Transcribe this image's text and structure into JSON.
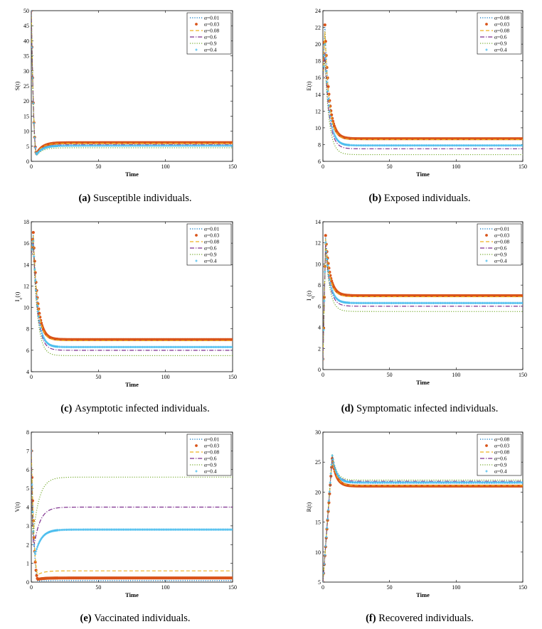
{
  "chart_data": [
    {
      "type": "line",
      "caption_letter": "(a)",
      "caption_text": "Susceptible individuals.",
      "ylabel": "S(t)",
      "xlabel": "Time",
      "xlim": [
        0,
        150
      ],
      "ylim": [
        0,
        50
      ],
      "xticks": [
        0,
        50,
        100,
        150
      ],
      "yticks": [
        0,
        5,
        10,
        15,
        20,
        25,
        30,
        35,
        40,
        45,
        50
      ],
      "legend": [
        "α=0.01",
        "α=0.03",
        "α=0.08",
        "α=0.6",
        "α=0.9",
        "α=0.4"
      ],
      "series": [
        {
          "name": "α=0.01",
          "style": "dotted",
          "color": "#0072BD",
          "start": 50,
          "peak": 50,
          "peakT": 0,
          "dip": 2.5,
          "dipT": 4,
          "final": 6.0
        },
        {
          "name": "α=0.03",
          "style": "circle",
          "color": "#D95319",
          "start": 50,
          "peak": 50,
          "peakT": 0,
          "dip": 2.5,
          "dipT": 4,
          "final": 6.2
        },
        {
          "name": "α=0.08",
          "style": "dashed",
          "color": "#EDB120",
          "start": 50,
          "peak": 50,
          "peakT": 0,
          "dip": 2.6,
          "dipT": 4,
          "final": 6.0
        },
        {
          "name": "α=0.6",
          "style": "dashdot",
          "color": "#7E2F8E",
          "start": 50,
          "peak": 50,
          "peakT": 0,
          "dip": 2.4,
          "dipT": 4,
          "final": 5.5
        },
        {
          "name": "α=0.9",
          "style": "dotted",
          "color": "#77AC30",
          "start": 50,
          "peak": 50,
          "peakT": 0,
          "dip": 2.0,
          "dipT": 4,
          "final": 4.5
        },
        {
          "name": "α=0.4",
          "style": "plus",
          "color": "#4DBEEE",
          "start": 50,
          "peak": 50,
          "peakT": 0,
          "dip": 2.3,
          "dipT": 4,
          "final": 5.2
        }
      ]
    },
    {
      "type": "line",
      "caption_letter": "(b)",
      "caption_text": "Exposed individuals.",
      "ylabel": "E(t)",
      "xlabel": "Time",
      "xlim": [
        0,
        150
      ],
      "ylim": [
        6,
        24
      ],
      "xticks": [
        0,
        50,
        100,
        150
      ],
      "yticks": [
        6,
        8,
        10,
        12,
        14,
        16,
        18,
        20,
        22,
        24
      ],
      "legend": [
        "α=0.08",
        "α=0.03",
        "α=0.08",
        "α=0.6",
        "α=0.9",
        "α=0.4"
      ],
      "series": [
        {
          "name": "α=0.08",
          "style": "dotted",
          "color": "#0072BD",
          "start": 16,
          "peak": 22,
          "peakT": 1.5,
          "final": 8.7
        },
        {
          "name": "α=0.03",
          "style": "circle",
          "color": "#D95319",
          "start": 16,
          "peak": 22.3,
          "peakT": 1.5,
          "final": 8.7
        },
        {
          "name": "α=0.08",
          "style": "dashed",
          "color": "#EDB120",
          "start": 16,
          "peak": 21.5,
          "peakT": 1.5,
          "final": 8.6
        },
        {
          "name": "α=0.6",
          "style": "dashdot",
          "color": "#7E2F8E",
          "start": 16,
          "peak": 19,
          "peakT": 1.5,
          "final": 7.5
        },
        {
          "name": "α=0.9",
          "style": "dotted",
          "color": "#77AC30",
          "start": 16,
          "peak": 18,
          "peakT": 1.5,
          "final": 6.8
        },
        {
          "name": "α=0.4",
          "style": "plus",
          "color": "#4DBEEE",
          "start": 16,
          "peak": 20,
          "peakT": 1.5,
          "final": 7.9
        }
      ]
    },
    {
      "type": "line",
      "caption_letter": "(c)",
      "caption_text": "Asymptotic infected individuals.",
      "ylabel": "I",
      "ylabel_sub": "c",
      "ylabel_suffix": "(t)",
      "xlabel": "Time",
      "xlim": [
        0,
        150
      ],
      "ylim": [
        4,
        18
      ],
      "xticks": [
        0,
        50,
        100,
        150
      ],
      "yticks": [
        4,
        6,
        8,
        10,
        12,
        14,
        16,
        18
      ],
      "legend": [
        "α=0.01",
        "α=0.03",
        "α=0.08",
        "α=0.6",
        "α=0.9",
        "α=0.4"
      ],
      "series": [
        {
          "name": "α=0.01",
          "style": "dotted",
          "color": "#0072BD",
          "start": 15,
          "peak": 16.8,
          "peakT": 1.5,
          "final": 7.0
        },
        {
          "name": "α=0.03",
          "style": "circle",
          "color": "#D95319",
          "start": 15,
          "peak": 17,
          "peakT": 1.5,
          "final": 7.0
        },
        {
          "name": "α=0.08",
          "style": "dashed",
          "color": "#EDB120",
          "start": 15,
          "peak": 16.7,
          "peakT": 1.5,
          "final": 6.9
        },
        {
          "name": "α=0.6",
          "style": "dashdot",
          "color": "#7E2F8E",
          "start": 15,
          "peak": 16,
          "peakT": 1.5,
          "final": 6.0
        },
        {
          "name": "α=0.9",
          "style": "dotted",
          "color": "#77AC30",
          "start": 15,
          "peak": 15.6,
          "peakT": 1.5,
          "final": 5.5
        },
        {
          "name": "α=0.4",
          "style": "plus",
          "color": "#4DBEEE",
          "start": 15,
          "peak": 16.2,
          "peakT": 1.5,
          "final": 6.3
        }
      ]
    },
    {
      "type": "line",
      "caption_letter": "(d)",
      "caption_text": "Symptomatic infected individuals.",
      "ylabel": "I",
      "ylabel_sub": "q",
      "ylabel_suffix": "(t)",
      "xlabel": "Time",
      "xlim": [
        0,
        150
      ],
      "ylim": [
        0,
        14
      ],
      "xticks": [
        0,
        50,
        100,
        150
      ],
      "yticks": [
        0,
        2,
        4,
        6,
        8,
        10,
        12,
        14
      ],
      "legend": [
        "α=0.01",
        "α=0.03",
        "α=0.08",
        "α=0.6",
        "α=0.9",
        "α=0.4"
      ],
      "series": [
        {
          "name": "α=0.01",
          "style": "dotted",
          "color": "#0072BD",
          "start": 1,
          "peak": 12.5,
          "peakT": 2,
          "final": 7.0
        },
        {
          "name": "α=0.03",
          "style": "circle",
          "color": "#D95319",
          "start": 1,
          "peak": 12.7,
          "peakT": 2,
          "final": 7.0
        },
        {
          "name": "α=0.08",
          "style": "dashed",
          "color": "#EDB120",
          "start": 1,
          "peak": 12.4,
          "peakT": 2,
          "final": 6.9
        },
        {
          "name": "α=0.6",
          "style": "dashdot",
          "color": "#7E2F8E",
          "start": 1,
          "peak": 11.8,
          "peakT": 2,
          "final": 6.0
        },
        {
          "name": "α=0.9",
          "style": "dotted",
          "color": "#77AC30",
          "start": 1,
          "peak": 11.5,
          "peakT": 2,
          "final": 5.5
        },
        {
          "name": "α=0.4",
          "style": "plus",
          "color": "#4DBEEE",
          "start": 1,
          "peak": 12.0,
          "peakT": 2,
          "final": 6.3
        }
      ]
    },
    {
      "type": "line",
      "caption_letter": "(e)",
      "caption_text": "Vaccinated individuals.",
      "ylabel": "V(t)",
      "xlabel": "Time",
      "xlim": [
        0,
        150
      ],
      "ylim": [
        0,
        8
      ],
      "xticks": [
        0,
        50,
        100,
        150
      ],
      "yticks": [
        0,
        1,
        2,
        3,
        4,
        5,
        6,
        7,
        8
      ],
      "legend": [
        "α=0.01",
        "α=0.03",
        "α=0.08",
        "α=0.6",
        "α=0.9",
        "α=0.4"
      ],
      "series": [
        {
          "name": "α=0.01",
          "style": "dotted",
          "color": "#0072BD",
          "start": 7,
          "dip": 0.05,
          "dipT": 5,
          "final": 0.08
        },
        {
          "name": "α=0.03",
          "style": "circle",
          "color": "#D95319",
          "start": 7,
          "dip": 0.15,
          "dipT": 5,
          "final": 0.22
        },
        {
          "name": "α=0.08",
          "style": "dashed",
          "color": "#EDB120",
          "start": 7,
          "dip": 0.4,
          "dipT": 5,
          "final": 0.6
        },
        {
          "name": "α=0.6",
          "style": "dashdot",
          "color": "#7E2F8E",
          "start": 7,
          "dip": 1.9,
          "dipT": 2,
          "final": 4.0
        },
        {
          "name": "α=0.9",
          "style": "dotted",
          "color": "#77AC30",
          "start": 7,
          "dip": 2.5,
          "dipT": 1.5,
          "final": 5.6
        },
        {
          "name": "α=0.4",
          "style": "plus",
          "color": "#4DBEEE",
          "start": 7,
          "dip": 1.5,
          "dipT": 3,
          "final": 2.8
        }
      ]
    },
    {
      "type": "line",
      "caption_letter": "(f)",
      "caption_text": "Recovered individuals.",
      "ylabel": "R(t)",
      "xlabel": "Time",
      "xlim": [
        0,
        150
      ],
      "ylim": [
        5,
        30
      ],
      "xticks": [
        0,
        50,
        100,
        150
      ],
      "yticks": [
        5,
        10,
        15,
        20,
        25,
        30
      ],
      "legend": [
        "α=0.08",
        "α=0.03",
        "α=0.08",
        "α=0.6",
        "α=0.9",
        "α=0.4"
      ],
      "series": [
        {
          "name": "α=0.08",
          "style": "dotted",
          "color": "#0072BD",
          "start": 5,
          "peak": 26,
          "peakT": 7,
          "final": 21.5
        },
        {
          "name": "α=0.03",
          "style": "circle",
          "color": "#D95319",
          "start": 5,
          "peak": 25.6,
          "peakT": 7,
          "final": 21.0
        },
        {
          "name": "α=0.08",
          "style": "dashed",
          "color": "#EDB120",
          "start": 5,
          "peak": 25.7,
          "peakT": 7,
          "final": 21.1
        },
        {
          "name": "α=0.6",
          "style": "dashdot",
          "color": "#7E2F8E",
          "start": 5,
          "peak": 26.0,
          "peakT": 7,
          "final": 21.8
        },
        {
          "name": "α=0.9",
          "style": "dotted",
          "color": "#77AC30",
          "start": 5,
          "peak": 26.3,
          "peakT": 7,
          "final": 22.0
        },
        {
          "name": "α=0.4",
          "style": "plus",
          "color": "#4DBEEE",
          "start": 5,
          "peak": 26.1,
          "peakT": 7,
          "final": 21.6
        }
      ]
    }
  ]
}
